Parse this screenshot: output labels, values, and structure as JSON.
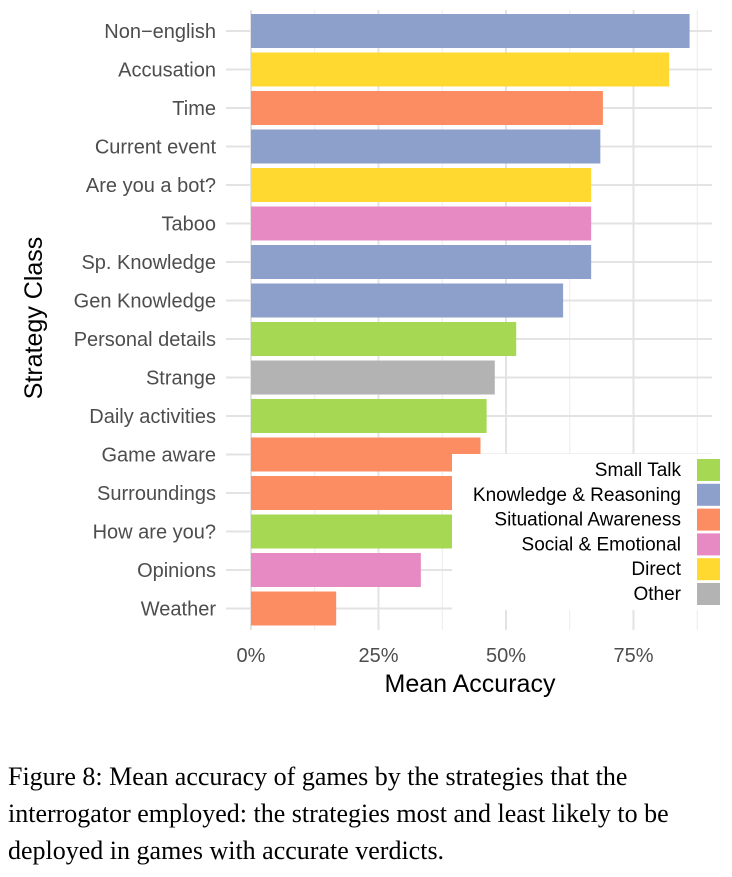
{
  "chart_data": {
    "type": "bar",
    "orientation": "horizontal",
    "xlabel": "Mean Accuracy",
    "ylabel": "Strategy Class",
    "xlim": [
      0,
      0.9
    ],
    "xticks": [
      {
        "value": 0,
        "label": "0%"
      },
      {
        "value": 0.25,
        "label": "25%"
      },
      {
        "value": 0.5,
        "label": "50%"
      },
      {
        "value": 0.75,
        "label": "75%"
      }
    ],
    "grid": true,
    "legend_position": "bottom-right",
    "legend": [
      {
        "name": "Small Talk",
        "color": "#a6d854"
      },
      {
        "name": "Knowledge & Reasoning",
        "color": "#8da0cb"
      },
      {
        "name": "Situational Awareness",
        "color": "#fc8d62"
      },
      {
        "name": "Social & Emotional",
        "color": "#e78ac3"
      },
      {
        "name": "Direct",
        "color": "#ffd92f"
      },
      {
        "name": "Other",
        "color": "#b3b3b3"
      }
    ],
    "bars": [
      {
        "category": "Non−english",
        "value": 0.86,
        "group": "Knowledge & Reasoning"
      },
      {
        "category": "Accusation",
        "value": 0.82,
        "group": "Direct"
      },
      {
        "category": "Time",
        "value": 0.69,
        "group": "Situational Awareness"
      },
      {
        "category": "Current event",
        "value": 0.685,
        "group": "Knowledge & Reasoning"
      },
      {
        "category": "Are you a bot?",
        "value": 0.667,
        "group": "Direct"
      },
      {
        "category": "Taboo",
        "value": 0.667,
        "group": "Social & Emotional"
      },
      {
        "category": "Sp. Knowledge",
        "value": 0.667,
        "group": "Knowledge & Reasoning"
      },
      {
        "category": "Gen Knowledge",
        "value": 0.612,
        "group": "Knowledge & Reasoning"
      },
      {
        "category": "Personal details",
        "value": 0.52,
        "group": "Small Talk"
      },
      {
        "category": "Strange",
        "value": 0.478,
        "group": "Other"
      },
      {
        "category": "Daily activities",
        "value": 0.462,
        "group": "Small Talk"
      },
      {
        "category": "Game aware",
        "value": 0.45,
        "group": "Situational Awareness"
      },
      {
        "category": "Surroundings",
        "value": 0.4,
        "group": "Situational Awareness"
      },
      {
        "category": "How are you?",
        "value": 0.4,
        "group": "Small Talk"
      },
      {
        "category": "Opinions",
        "value": 0.333,
        "group": "Social & Emotional"
      },
      {
        "category": "Weather",
        "value": 0.167,
        "group": "Situational Awareness"
      }
    ]
  },
  "caption": "Figure 8: Mean accuracy of games by the strategies that the interrogator employed: the strategies most and least likely to be deployed in games with accurate verdicts."
}
